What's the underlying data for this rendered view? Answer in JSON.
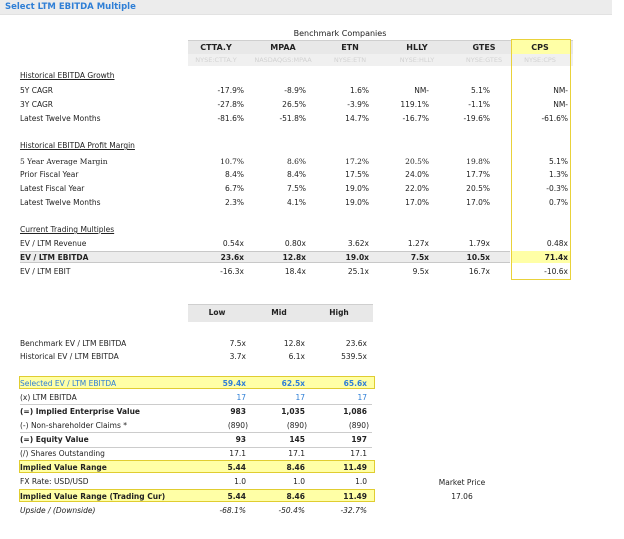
{
  "title": "Select LTM EBITDA Multiple",
  "benchmark_title": "Benchmark Companies",
  "columns": [
    {
      "name": "CTTA.Y",
      "ticker": "NYSE:CTTA.Y"
    },
    {
      "name": "MPAA",
      "ticker": "NASDAQGS:MPAA"
    },
    {
      "name": "ETN",
      "ticker": "NYSE:ETN"
    },
    {
      "name": "HLLY",
      "ticker": "NYSE:HLLY"
    },
    {
      "name": "GTES",
      "ticker": "NYSE:GTES"
    }
  ],
  "cps": {
    "name": "CPS",
    "ticker": "NYSE:CPS"
  },
  "sections": {
    "growth": {
      "label": "Historical EBITDA Growth",
      "rows": [
        {
          "label": "5Y CAGR",
          "values": [
            "-17.9%",
            "-8.9%",
            "1.6%",
            "NM-",
            "5.1%"
          ],
          "cps": "NM-"
        },
        {
          "label": "3Y CAGR",
          "values": [
            "-27.8%",
            "26.5%",
            "-3.9%",
            "119.1%",
            "-1.1%"
          ],
          "cps": "NM-"
        },
        {
          "label": "Latest Twelve Months",
          "values": [
            "-81.6%",
            "-51.8%",
            "14.7%",
            "-16.7%",
            "-19.6%"
          ],
          "cps": "-61.6%"
        }
      ]
    },
    "margin": {
      "label": "Historical EBITDA Profit Margin",
      "rows": [
        {
          "label": "5 Year Average Margin",
          "values": [
            "10.7%",
            "8.6%",
            "17.2%",
            "20.5%",
            "19.8%"
          ],
          "cps": "5.1%"
        },
        {
          "label": "Prior Fiscal Year",
          "values": [
            "8.4%",
            "8.4%",
            "17.5%",
            "24.0%",
            "17.7%"
          ],
          "cps": "1.3%"
        },
        {
          "label": "Latest Fiscal Year",
          "values": [
            "6.7%",
            "7.5%",
            "19.0%",
            "22.0%",
            "20.5%"
          ],
          "cps": "-0.3%"
        },
        {
          "label": "Latest Twelve Months",
          "values": [
            "2.3%",
            "4.1%",
            "19.0%",
            "17.0%",
            "17.0%"
          ],
          "cps": "0.7%"
        }
      ]
    },
    "multiples": {
      "label": "Current Trading Multiples",
      "rows": [
        {
          "label": "EV / LTM Revenue",
          "values": [
            "0.54x",
            "0.80x",
            "3.62x",
            "1.27x",
            "1.79x"
          ],
          "cps": "0.48x"
        },
        {
          "label": "EV / LTM EBITDA",
          "values": [
            "23.6x",
            "12.8x",
            "19.0x",
            "7.5x",
            "10.5x"
          ],
          "cps": "71.4x"
        },
        {
          "label": "EV / LTM EBIT",
          "values": [
            "-16.3x",
            "18.4x",
            "25.1x",
            "9.5x",
            "16.7x"
          ],
          "cps": "-10.6x"
        }
      ]
    }
  },
  "scenario_headers": [
    "Low",
    "Mid",
    "High"
  ],
  "scenario_rows": [
    {
      "label": "Benchmark EV / LTM EBITDA",
      "values": [
        "7.5x",
        "12.8x",
        "23.6x"
      ]
    },
    {
      "label": "Historical EV / LTM EBITDA",
      "values": [
        "3.7x",
        "6.1x",
        "539.5x"
      ]
    },
    {
      "label": "Selected EV / LTM EBITDA",
      "values": [
        "59.4x",
        "62.5x",
        "65.6x"
      ]
    },
    {
      "label": "(x) LTM EBITDA",
      "values": [
        "17",
        "17",
        "17"
      ]
    },
    {
      "label": "(=) Implied Enterprise Value",
      "values": [
        "983",
        "1,035",
        "1,086"
      ]
    },
    {
      "label": "(-) Non-shareholder Claims *",
      "values": [
        "(890)",
        "(890)",
        "(890)"
      ]
    },
    {
      "label": "(=) Equity Value",
      "values": [
        "93",
        "145",
        "197"
      ]
    },
    {
      "label": "(/) Shares Outstanding",
      "values": [
        "17.1",
        "17.1",
        "17.1"
      ]
    },
    {
      "label": "Implied Value Range",
      "values": [
        "5.44",
        "8.46",
        "11.49"
      ]
    },
    {
      "label": "FX Rate: USD/USD",
      "values": [
        "1.0",
        "1.0",
        "1.0"
      ]
    },
    {
      "label": "Implied Value Range (Trading Cur)",
      "values": [
        "5.44",
        "8.46",
        "11.49"
      ]
    },
    {
      "label": "Upside / (Downside)",
      "values": [
        "-68.1%",
        "-50.4%",
        "-32.7%"
      ]
    }
  ],
  "market_price": {
    "label": "Market Price",
    "value": "17.06"
  },
  "colors": {
    "accent_blue": "#2f7fd6",
    "highlight_yellow": "#ffffa6",
    "box_border": "#e0cd30"
  }
}
